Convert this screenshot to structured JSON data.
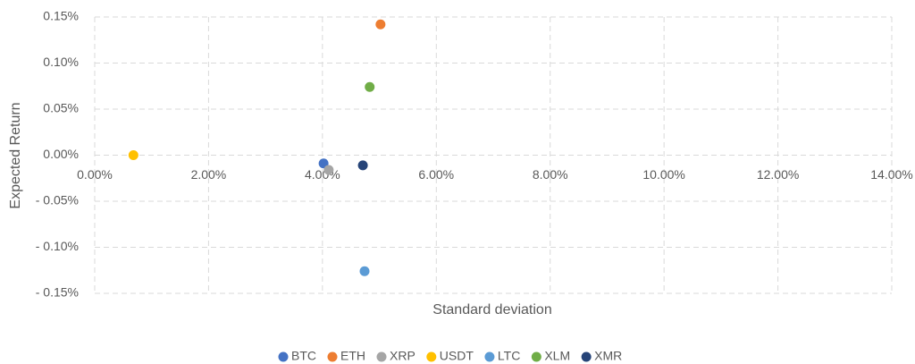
{
  "chart_data": {
    "type": "scatter",
    "xlabel": "Standard deviation",
    "ylabel": "Expected Return",
    "xlim": [
      0,
      14
    ],
    "xticks": [
      {
        "value": 0,
        "label": "0.00%"
      },
      {
        "value": 2,
        "label": "2.00%"
      },
      {
        "value": 4,
        "label": "4.00%"
      },
      {
        "value": 6,
        "label": "6.00%"
      },
      {
        "value": 8,
        "label": "8.00%"
      },
      {
        "value": 10,
        "label": "10.00%"
      },
      {
        "value": 12,
        "label": "12.00%"
      },
      {
        "value": 14,
        "label": "14.00%"
      }
    ],
    "ylim": [
      -0.15,
      0.15
    ],
    "yticks": [
      {
        "value": 0.15,
        "label": "0.15%"
      },
      {
        "value": 0.1,
        "label": "0.10%"
      },
      {
        "value": 0.05,
        "label": "0.05%"
      },
      {
        "value": 0,
        "label": "0.00%"
      },
      {
        "value": -0.05,
        "label": "- 0.05%"
      },
      {
        "value": -0.1,
        "label": "- 0.10%"
      },
      {
        "value": -0.15,
        "label": "- 0.15%"
      }
    ],
    "grid": true,
    "legend": "bottom",
    "series": [
      {
        "name": "BTC",
        "color": "#4472c4",
        "x": [
          4.02
        ],
        "values": [
          -0.009
        ]
      },
      {
        "name": "ETH",
        "color": "#ed7d31",
        "x": [
          5.02
        ],
        "values": [
          0.142
        ]
      },
      {
        "name": "XRP",
        "color": "#a5a5a5",
        "x": [
          4.11
        ],
        "values": [
          -0.016
        ]
      },
      {
        "name": "USDT",
        "color": "#ffc000",
        "x": [
          0.68
        ],
        "values": [
          0
        ]
      },
      {
        "name": "LTC",
        "color": "#5b9bd5",
        "x": [
          4.74
        ],
        "values": [
          -0.126
        ]
      },
      {
        "name": "XLM",
        "color": "#70ad47",
        "x": [
          4.83
        ],
        "values": [
          0.074
        ]
      },
      {
        "name": "XMR",
        "color": "#264478",
        "x": [
          4.71
        ],
        "values": [
          -0.011
        ]
      }
    ]
  }
}
